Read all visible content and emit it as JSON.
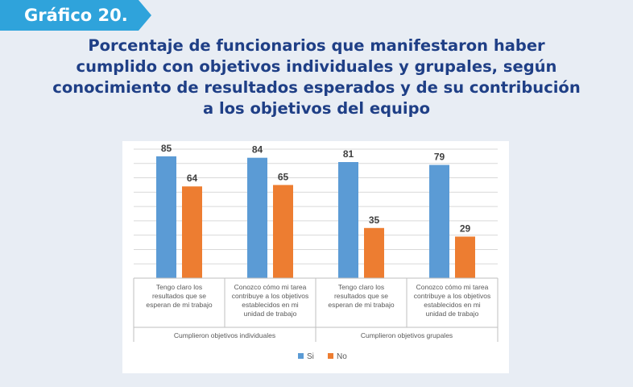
{
  "header": {
    "badge": "Gráfico 20."
  },
  "title_lines": [
    "Porcentaje de funcionarios que manifestaron haber",
    "cumplido con objetivos individuales y grupales, según",
    "conocimiento de resultados esperados y de su contribución",
    "a los objetivos del equipo"
  ],
  "colors": {
    "si": "#5b9bd5",
    "no": "#ed7d31",
    "badge": "#2fa3db",
    "title": "#1f3f86"
  },
  "chart_data": {
    "type": "bar",
    "title": "Porcentaje de funcionarios que manifestaron haber cumplido con objetivos individuales y grupales, según conocimiento de resultados esperados y de su contribución a los objetivos del equipo",
    "categories": [
      [
        "Tengo claro los",
        "resultados que se",
        "esperan de mi trabajo"
      ],
      [
        "Conozco cómo mi tarea",
        "contribuye a los objetivos",
        "establecidos en mi",
        "unidad de trabajo"
      ],
      [
        "Tengo claro los",
        "resultados que se",
        "esperan de mi trabajo"
      ],
      [
        "Conozco cómo mi tarea",
        "contribuye a los objetivos",
        "establecidos en mi",
        "unidad de trabajo"
      ]
    ],
    "groups": [
      {
        "label": "Cumplieron objetivos individuales",
        "span": [
          0,
          1
        ]
      },
      {
        "label": "Cumplieron objetivos grupales",
        "span": [
          2,
          3
        ]
      }
    ],
    "series": [
      {
        "name": "Si",
        "values": [
          85,
          84,
          81,
          79
        ]
      },
      {
        "name": "No",
        "values": [
          64,
          65,
          35,
          29
        ]
      }
    ],
    "ylim": [
      0,
      90
    ],
    "grid": true,
    "legend": "bottom"
  }
}
